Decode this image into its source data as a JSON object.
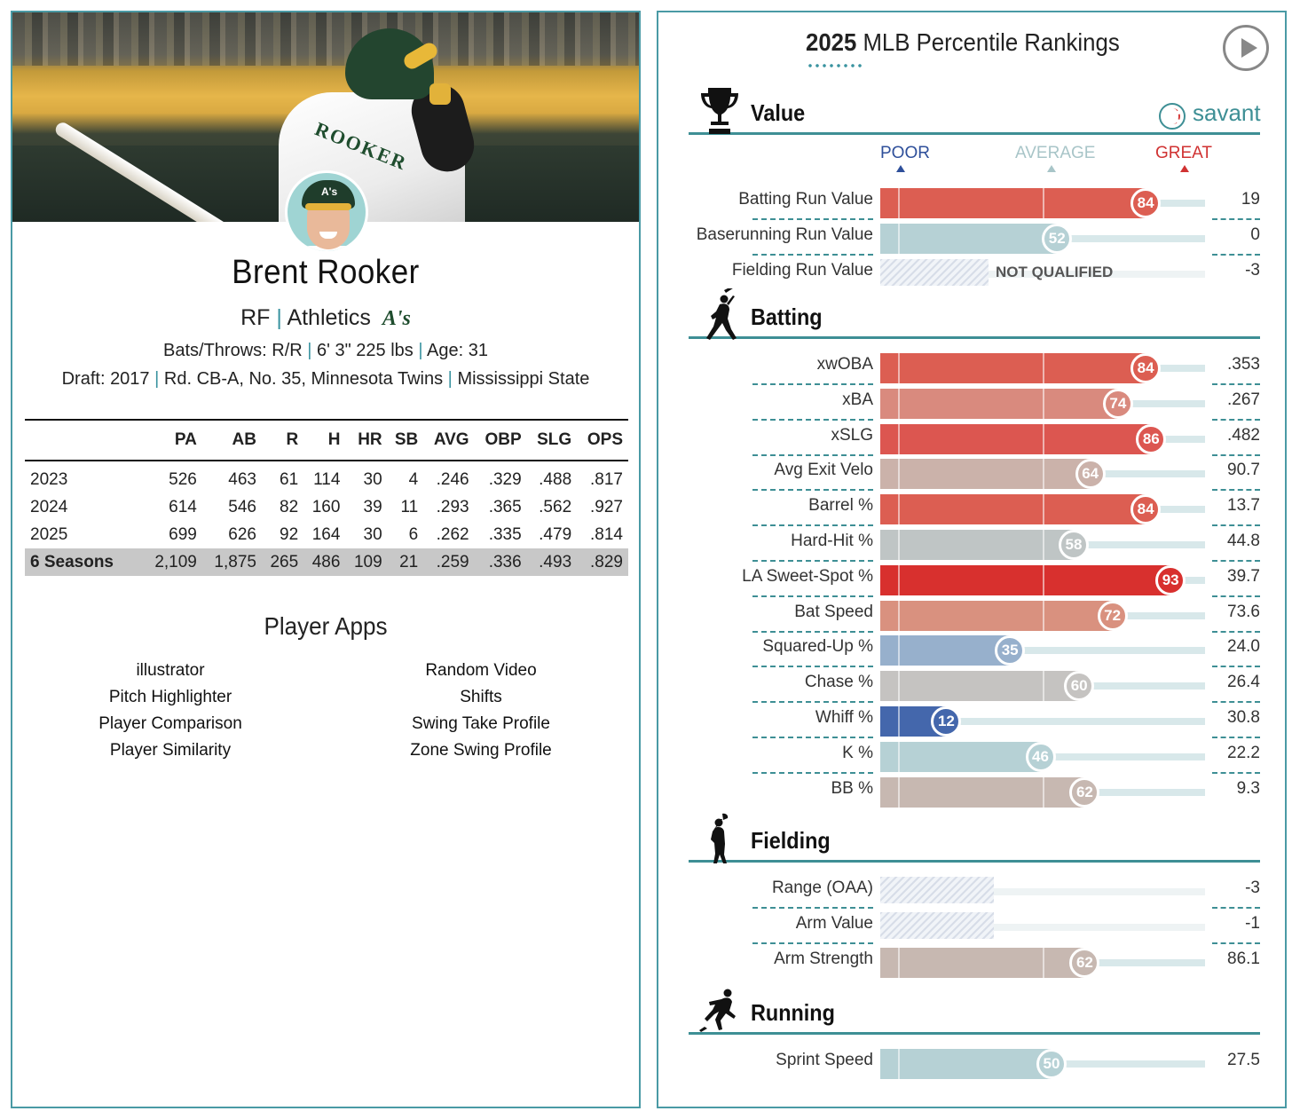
{
  "player": {
    "name": "Brent Rooker",
    "position": "RF",
    "team": "Athletics",
    "team_logo": "A's",
    "bats_throws": "Bats/Throws: R/R",
    "height_weight": "6' 3\" 225 lbs",
    "age": "Age: 31",
    "draft_year": "Draft: 2017",
    "draft_pick": "Rd. CB-A, No. 35,",
    "draft_team": "Minnesota Twins",
    "college": "Mississippi State",
    "jersey_text": "ROOKER",
    "cap_logo": "A's"
  },
  "stats": {
    "headers": [
      "",
      "PA",
      "AB",
      "R",
      "H",
      "HR",
      "SB",
      "AVG",
      "OBP",
      "SLG",
      "OPS"
    ],
    "rows": [
      [
        "2023",
        "526",
        "463",
        "61",
        "114",
        "30",
        "4",
        ".246",
        ".329",
        ".488",
        ".817"
      ],
      [
        "2024",
        "614",
        "546",
        "82",
        "160",
        "39",
        "11",
        ".293",
        ".365",
        ".562",
        ".927"
      ],
      [
        "2025",
        "699",
        "626",
        "92",
        "164",
        "30",
        "6",
        ".262",
        ".335",
        ".479",
        ".814"
      ]
    ],
    "total": [
      "6 Seasons",
      "2,109",
      "1,875",
      "265",
      "486",
      "109",
      "21",
      ".259",
      ".336",
      ".493",
      ".829"
    ]
  },
  "apps": {
    "title": "Player Apps",
    "left": [
      "illustrator",
      "Pitch Highlighter",
      "Player Comparison",
      "Player Similarity"
    ],
    "right": [
      "Random Video",
      "Shifts",
      "Swing Take Profile",
      "Zone Swing Profile"
    ]
  },
  "rankings": {
    "title_year": "2025",
    "title_rest": "MLB Percentile Rankings",
    "brand": "savant",
    "legend": {
      "poor": "POOR",
      "average": "AVERAGE",
      "great": "GREAT"
    },
    "not_qualified": "NOT QUALIFIED",
    "sections": [
      {
        "name": "Value",
        "icon": "trophy-icon",
        "metrics": [
          {
            "label": "Batting Run Value",
            "pct": 84,
            "value": "19",
            "color": "#dc5e52"
          },
          {
            "label": "Baserunning Run Value",
            "pct": 52,
            "value": "0",
            "color": "#b6d1d5"
          },
          {
            "label": "Fielding Run Value",
            "pct": null,
            "value": "-3",
            "qualified": false
          }
        ]
      },
      {
        "name": "Batting",
        "icon": "batter-icon",
        "metrics": [
          {
            "label": "xwOBA",
            "pct": 84,
            "value": ".353",
            "color": "#dc5e52"
          },
          {
            "label": "xBA",
            "pct": 74,
            "value": ".267",
            "color": "#d98a7e"
          },
          {
            "label": "xSLG",
            "pct": 86,
            "value": ".482",
            "color": "#dc5650"
          },
          {
            "label": "Avg Exit Velo",
            "pct": 64,
            "value": "90.7",
            "color": "#cbb2aa"
          },
          {
            "label": "Barrel %",
            "pct": 84,
            "value": "13.7",
            "color": "#dc5e52"
          },
          {
            "label": "Hard-Hit %",
            "pct": 58,
            "value": "44.8",
            "color": "#bfc5c5"
          },
          {
            "label": "LA Sweet-Spot %",
            "pct": 93,
            "value": "39.7",
            "color": "#d8302e"
          },
          {
            "label": "Bat Speed",
            "pct": 72,
            "value": "73.6",
            "color": "#d9917f"
          },
          {
            "label": "Squared-Up %",
            "pct": 35,
            "value": "24.0",
            "color": "#97b0cc"
          },
          {
            "label": "Chase %",
            "pct": 60,
            "value": "26.4",
            "color": "#c5c3c1"
          },
          {
            "label": "Whiff %",
            "pct": 12,
            "value": "30.8",
            "color": "#4467ac"
          },
          {
            "label": "K %",
            "pct": 46,
            "value": "22.2",
            "color": "#b6d1d5"
          },
          {
            "label": "BB %",
            "pct": 62,
            "value": "9.3",
            "color": "#c7b8b1"
          }
        ]
      },
      {
        "name": "Fielding",
        "icon": "fielder-icon",
        "metrics": [
          {
            "label": "Range (OAA)",
            "pct": null,
            "value": "-3",
            "qualified": false
          },
          {
            "label": "Arm Value",
            "pct": null,
            "value": "-1",
            "qualified": false
          },
          {
            "label": "Arm Strength",
            "pct": 62,
            "value": "86.1",
            "color": "#c7b8b1"
          }
        ]
      },
      {
        "name": "Running",
        "icon": "runner-icon",
        "metrics": [
          {
            "label": "Sprint Speed",
            "pct": 50,
            "value": "27.5",
            "color": "#b6d1d5"
          }
        ]
      }
    ]
  }
}
